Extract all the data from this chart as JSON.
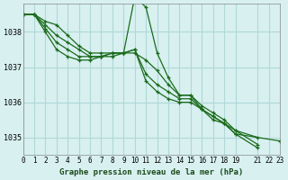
{
  "background_color": "#d8f0f0",
  "grid_color": "#b0d8d8",
  "line_color": "#1a6b1a",
  "marker_color": "#1a6b1a",
  "title": "Graphe pression niveau de la mer (hPa)",
  "xlim": [
    0,
    23
  ],
  "ylim": [
    1034.5,
    1038.8
  ],
  "yticks": [
    1035,
    1036,
    1037,
    1038
  ],
  "xticks": [
    0,
    1,
    2,
    3,
    4,
    5,
    6,
    7,
    8,
    9,
    10,
    11,
    12,
    13,
    14,
    15,
    16,
    17,
    18,
    19,
    21,
    22,
    23
  ],
  "xtick_labels": [
    "0",
    "1",
    "2",
    "3",
    "4",
    "5",
    "6",
    "7",
    "8",
    "9",
    "10",
    "11",
    "12",
    "13",
    "14",
    "15",
    "16",
    "17",
    "18",
    "19",
    "21",
    "22",
    "23"
  ],
  "series": [
    [
      1038.5,
      1038.5,
      1038.3,
      1038.2,
      1037.9,
      1037.6,
      1037.4,
      1037.4,
      1037.4,
      1037.4,
      1039.0,
      1038.7,
      1037.4,
      1036.7,
      1036.2,
      1036.2,
      1035.8,
      1035.5,
      1035.4,
      1035.2,
      null,
      1035.0,
      null,
      null
    ],
    [
      1038.5,
      1038.5,
      1038.2,
      1037.9,
      1037.7,
      1037.5,
      1037.3,
      1037.3,
      1037.3,
      1037.4,
      1037.4,
      1037.2,
      1036.9,
      1036.5,
      1036.2,
      1036.2,
      1035.9,
      1035.7,
      1035.5,
      1035.2,
      null,
      1034.8,
      null,
      null
    ],
    [
      1038.5,
      1038.5,
      1038.1,
      1037.7,
      1037.5,
      1037.3,
      1037.3,
      1037.3,
      1037.4,
      1037.4,
      1037.5,
      1036.8,
      1036.5,
      1036.3,
      1036.1,
      1036.1,
      1035.8,
      1035.6,
      1035.4,
      1035.1,
      null,
      1034.7,
      null,
      null
    ],
    [
      1038.5,
      1038.5,
      1038.0,
      1037.5,
      1037.3,
      1037.2,
      1037.2,
      1037.3,
      1037.4,
      1037.4,
      1037.5,
      1036.6,
      1036.3,
      1036.1,
      1036.0,
      1036.0,
      1035.8,
      1035.6,
      1035.4,
      1035.1,
      null,
      null,
      null,
      1034.9
    ]
  ]
}
